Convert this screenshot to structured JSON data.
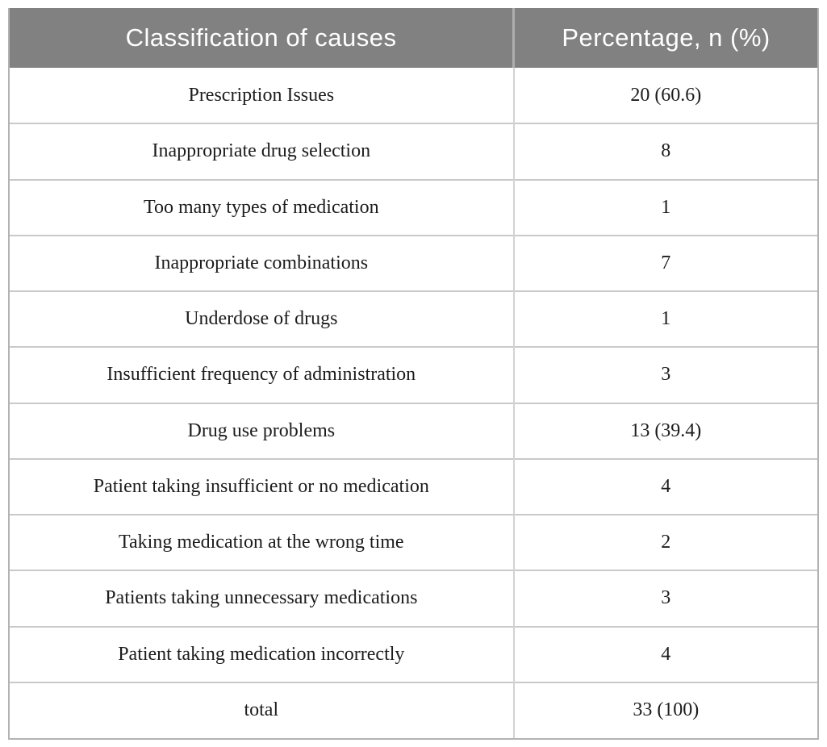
{
  "table": {
    "columns": [
      {
        "label": "Classification of causes"
      },
      {
        "label": "Percentage, n (%)"
      }
    ],
    "rows": [
      {
        "cause": "Prescription Issues",
        "value": "20 (60.6)"
      },
      {
        "cause": "Inappropriate drug selection",
        "value": "8"
      },
      {
        "cause": "Too many types of medication",
        "value": "1"
      },
      {
        "cause": "Inappropriate combinations",
        "value": "7"
      },
      {
        "cause": "Underdose of drugs",
        "value": "1"
      },
      {
        "cause": "Insufficient frequency of administration",
        "value": "3"
      },
      {
        "cause": "Drug use problems",
        "value": "13 (39.4)"
      },
      {
        "cause": "Patient taking insufficient or no medication",
        "value": "4"
      },
      {
        "cause": "Taking medication at the wrong time",
        "value": "2"
      },
      {
        "cause": "Patients taking unnecessary medications",
        "value": "3"
      },
      {
        "cause": "Patient taking medication incorrectly",
        "value": "4"
      },
      {
        "cause": "total",
        "value": "33 (100)"
      }
    ],
    "colors": {
      "header_bg": "#818181",
      "header_text": "#ffffff",
      "body_text": "#1c1c1c",
      "row_divider": "#c9c9c9",
      "outer_border": "#b3b3b3",
      "header_divider": "#aeaeae",
      "body_col_divider": "#d2d2d2"
    }
  }
}
